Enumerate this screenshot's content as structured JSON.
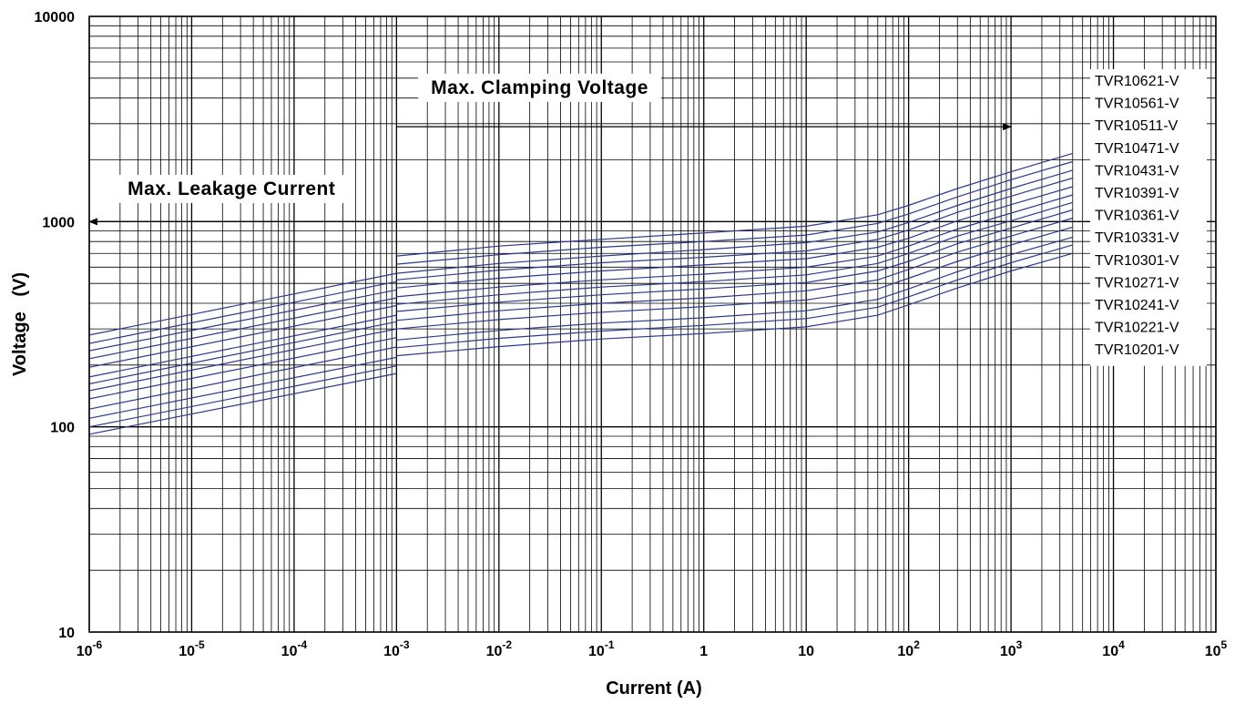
{
  "chart_data": {
    "type": "line",
    "title": "",
    "xlabel": "Current (A)",
    "ylabel": "Voltage   (V)",
    "x_scale": "log",
    "y_scale": "log",
    "xlim": [
      1e-06,
      100000
    ],
    "ylim": [
      10,
      10000
    ],
    "grid": true,
    "legend_position": "right",
    "series_color": "#2b3990",
    "x_tick_labels": [
      {
        "value": 1e-06,
        "base": "10",
        "exp": "-6"
      },
      {
        "value": 1e-05,
        "base": "10",
        "exp": "-5"
      },
      {
        "value": 0.0001,
        "base": "10",
        "exp": "-4"
      },
      {
        "value": 0.001,
        "base": "10",
        "exp": "-3"
      },
      {
        "value": 0.01,
        "base": "10",
        "exp": "-2"
      },
      {
        "value": 0.1,
        "base": "10",
        "exp": "-1"
      },
      {
        "value": 1,
        "base": "1",
        "exp": ""
      },
      {
        "value": 10,
        "base": "10",
        "exp": ""
      },
      {
        "value": 100,
        "base": "10",
        "exp": "2"
      },
      {
        "value": 1000,
        "base": "10",
        "exp": "3"
      },
      {
        "value": 10000,
        "base": "10",
        "exp": "4"
      },
      {
        "value": 100000,
        "base": "10",
        "exp": "5"
      }
    ],
    "y_tick_labels": [
      {
        "value": 10,
        "label": "10"
      },
      {
        "value": 100,
        "label": "100"
      },
      {
        "value": 1000,
        "label": "1000"
      },
      {
        "value": 10000,
        "label": "10000"
      }
    ],
    "annotations": [
      {
        "text": "Max.  Clamping  Voltage",
        "arrow_from": 0.001,
        "arrow_to": 1000,
        "arrow_at_y": 2900,
        "text_center_x": 0.025,
        "text_y": 4200
      },
      {
        "text": "Max. Leakage Current",
        "arrow_from": 0.001,
        "arrow_to": 1e-06,
        "arrow_at_y": 1000,
        "text_center_x": 2.45e-05,
        "text_y": 1350
      }
    ],
    "legend": [
      "TVR10621-V",
      "TVR10561-V",
      "TVR10511-V",
      "TVR10471-V",
      "TVR10431-V",
      "TVR10391-V",
      "TVR10361-V",
      "TVR10331-V",
      "TVR10301-V",
      "TVR10271-V",
      "TVR10241-V",
      "TVR10221-V",
      "TVR10201-V"
    ],
    "series": [
      {
        "name": "TVR10621-V",
        "leakage": [
          [
            1e-06,
            280
          ],
          [
            0.001,
            560
          ]
        ],
        "clamping": [
          [
            0.001,
            680
          ],
          [
            0.01,
            760
          ],
          [
            0.1,
            820
          ],
          [
            1,
            880
          ],
          [
            10,
            950
          ],
          [
            50,
            1080
          ],
          [
            100,
            1200
          ],
          [
            300,
            1450
          ],
          [
            1000,
            1750
          ],
          [
            4000,
            2150
          ]
        ]
      },
      {
        "name": "TVR10561-V",
        "leakage": [
          [
            1e-06,
            255
          ],
          [
            0.001,
            510
          ]
        ],
        "clamping": [
          [
            0.001,
            620
          ],
          [
            0.01,
            690
          ],
          [
            0.1,
            750
          ],
          [
            1,
            800
          ],
          [
            10,
            860
          ],
          [
            50,
            980
          ],
          [
            100,
            1090
          ],
          [
            300,
            1320
          ],
          [
            1000,
            1600
          ],
          [
            4000,
            1960
          ]
        ]
      },
      {
        "name": "TVR10511-V",
        "leakage": [
          [
            1e-06,
            235
          ],
          [
            0.001,
            465
          ]
        ],
        "clamping": [
          [
            0.001,
            560
          ],
          [
            0.01,
            625
          ],
          [
            0.1,
            680
          ],
          [
            1,
            730
          ],
          [
            10,
            790
          ],
          [
            50,
            890
          ],
          [
            100,
            990
          ],
          [
            300,
            1200
          ],
          [
            1000,
            1450
          ],
          [
            4000,
            1780
          ]
        ]
      },
      {
        "name": "TVR10471-V",
        "leakage": [
          [
            1e-06,
            215
          ],
          [
            0.001,
            425
          ]
        ],
        "clamping": [
          [
            0.001,
            520
          ],
          [
            0.01,
            580
          ],
          [
            0.1,
            630
          ],
          [
            1,
            670
          ],
          [
            10,
            720
          ],
          [
            50,
            820
          ],
          [
            100,
            910
          ],
          [
            300,
            1110
          ],
          [
            1000,
            1330
          ],
          [
            4000,
            1630
          ]
        ]
      },
      {
        "name": "TVR10431-V",
        "leakage": [
          [
            1e-06,
            195
          ],
          [
            0.001,
            390
          ]
        ],
        "clamping": [
          [
            0.001,
            475
          ],
          [
            0.01,
            530
          ],
          [
            0.1,
            575
          ],
          [
            1,
            615
          ],
          [
            10,
            660
          ],
          [
            50,
            750
          ],
          [
            100,
            830
          ],
          [
            300,
            1010
          ],
          [
            1000,
            1210
          ],
          [
            4000,
            1480
          ]
        ]
      },
      {
        "name": "TVR10391-V",
        "leakage": [
          [
            1e-06,
            175
          ],
          [
            0.001,
            350
          ]
        ],
        "clamping": [
          [
            0.001,
            430
          ],
          [
            0.01,
            480
          ],
          [
            0.1,
            520
          ],
          [
            1,
            555
          ],
          [
            10,
            600
          ],
          [
            50,
            680
          ],
          [
            100,
            760
          ],
          [
            300,
            920
          ],
          [
            1000,
            1100
          ],
          [
            4000,
            1350
          ]
        ]
      },
      {
        "name": "TVR10361-V",
        "leakage": [
          [
            1e-06,
            162
          ],
          [
            0.001,
            325
          ]
        ],
        "clamping": [
          [
            0.001,
            395
          ],
          [
            0.01,
            440
          ],
          [
            0.1,
            480
          ],
          [
            1,
            510
          ],
          [
            10,
            550
          ],
          [
            50,
            625
          ],
          [
            100,
            700
          ],
          [
            300,
            850
          ],
          [
            1000,
            1010
          ],
          [
            4000,
            1240
          ]
        ]
      },
      {
        "name": "TVR10331-V",
        "leakage": [
          [
            1e-06,
            150
          ],
          [
            0.001,
            300
          ]
        ],
        "clamping": [
          [
            0.001,
            365
          ],
          [
            0.01,
            405
          ],
          [
            0.1,
            440
          ],
          [
            1,
            470
          ],
          [
            10,
            505
          ],
          [
            50,
            575
          ],
          [
            100,
            640
          ],
          [
            300,
            780
          ],
          [
            1000,
            930
          ],
          [
            4000,
            1140
          ]
        ]
      },
      {
        "name": "TVR10301-V",
        "leakage": [
          [
            1e-06,
            137
          ],
          [
            0.001,
            272
          ]
        ],
        "clamping": [
          [
            0.001,
            330
          ],
          [
            0.01,
            368
          ],
          [
            0.1,
            400
          ],
          [
            1,
            425
          ],
          [
            10,
            460
          ],
          [
            50,
            520
          ],
          [
            100,
            585
          ],
          [
            300,
            710
          ],
          [
            1000,
            850
          ],
          [
            4000,
            1040
          ]
        ]
      },
      {
        "name": "TVR10271-V",
        "leakage": [
          [
            1e-06,
            122
          ],
          [
            0.001,
            245
          ]
        ],
        "clamping": [
          [
            0.001,
            300
          ],
          [
            0.01,
            333
          ],
          [
            0.1,
            362
          ],
          [
            1,
            385
          ],
          [
            10,
            415
          ],
          [
            50,
            470
          ],
          [
            100,
            530
          ],
          [
            300,
            640
          ],
          [
            1000,
            770
          ],
          [
            4000,
            940
          ]
        ]
      },
      {
        "name": "TVR10241-V",
        "leakage": [
          [
            1e-06,
            110
          ],
          [
            0.001,
            218
          ]
        ],
        "clamping": [
          [
            0.001,
            265
          ],
          [
            0.01,
            295
          ],
          [
            0.1,
            320
          ],
          [
            1,
            340
          ],
          [
            10,
            368
          ],
          [
            50,
            418
          ],
          [
            100,
            470
          ],
          [
            300,
            570
          ],
          [
            1000,
            690
          ],
          [
            4000,
            840
          ]
        ]
      },
      {
        "name": "TVR10221-V",
        "leakage": [
          [
            1e-06,
            100
          ],
          [
            0.001,
            198
          ]
        ],
        "clamping": [
          [
            0.001,
            243
          ],
          [
            0.01,
            270
          ],
          [
            0.1,
            293
          ],
          [
            1,
            312
          ],
          [
            10,
            337
          ],
          [
            50,
            383
          ],
          [
            100,
            430
          ],
          [
            300,
            520
          ],
          [
            1000,
            630
          ],
          [
            4000,
            770
          ]
        ]
      },
      {
        "name": "TVR10201-V",
        "leakage": [
          [
            1e-06,
            92
          ],
          [
            0.001,
            182
          ]
        ],
        "clamping": [
          [
            0.001,
            222
          ],
          [
            0.01,
            246
          ],
          [
            0.1,
            268
          ],
          [
            1,
            285
          ],
          [
            10,
            307
          ],
          [
            50,
            350
          ],
          [
            100,
            393
          ],
          [
            300,
            475
          ],
          [
            1000,
            575
          ],
          [
            4000,
            700
          ]
        ]
      }
    ]
  }
}
